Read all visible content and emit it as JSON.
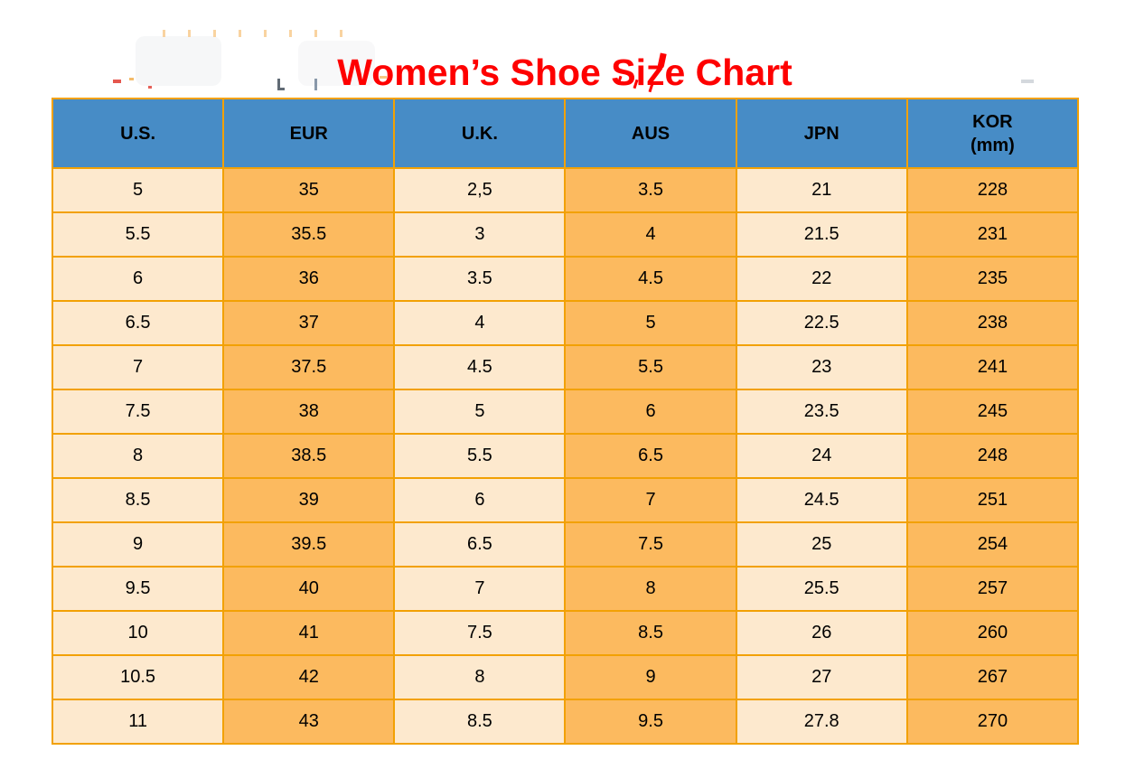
{
  "title": "Women’s Shoe Size Chart",
  "colors": {
    "title_color": "#fe0000",
    "header_bg": "#478cc6",
    "cell_light": "#fde9ce",
    "cell_dark": "#fcba5f",
    "border_color": "#f2a104",
    "text_color": "#000000"
  },
  "chart_data": {
    "type": "table",
    "title": "Women’s Shoe Size Chart",
    "columns": [
      "U.S.",
      "EUR",
      "U.K.",
      "AUS",
      "JPN",
      "KOR (mm)"
    ],
    "header_display": [
      {
        "line1": "U.S.",
        "line2": ""
      },
      {
        "line1": "EUR",
        "line2": ""
      },
      {
        "line1": "U.K.",
        "line2": ""
      },
      {
        "line1": "AUS",
        "line2": ""
      },
      {
        "line1": "JPN",
        "line2": ""
      },
      {
        "line1": "KOR",
        "line2": "(mm)"
      }
    ],
    "rows": [
      [
        "5",
        "35",
        "2,5",
        "3.5",
        "21",
        "228"
      ],
      [
        "5.5",
        "35.5",
        "3",
        "4",
        "21.5",
        "231"
      ],
      [
        "6",
        "36",
        "3.5",
        "4.5",
        "22",
        "235"
      ],
      [
        "6.5",
        "37",
        "4",
        "5",
        "22.5",
        "238"
      ],
      [
        "7",
        "37.5",
        "4.5",
        "5.5",
        "23",
        "241"
      ],
      [
        "7.5",
        "38",
        "5",
        "6",
        "23.5",
        "245"
      ],
      [
        "8",
        "38.5",
        "5.5",
        "6.5",
        "24",
        "248"
      ],
      [
        "8.5",
        "39",
        "6",
        "7",
        "24.5",
        "251"
      ],
      [
        "9",
        "39.5",
        "6.5",
        "7.5",
        "25",
        "254"
      ],
      [
        "9.5",
        "40",
        "7",
        "8",
        "25.5",
        "257"
      ],
      [
        "10",
        "41",
        "7.5",
        "8.5",
        "26",
        "260"
      ],
      [
        "10.5",
        "42",
        "8",
        "9",
        "27",
        "267"
      ],
      [
        "11",
        "43",
        "8.5",
        "9.5",
        "27.8",
        "270"
      ]
    ]
  }
}
